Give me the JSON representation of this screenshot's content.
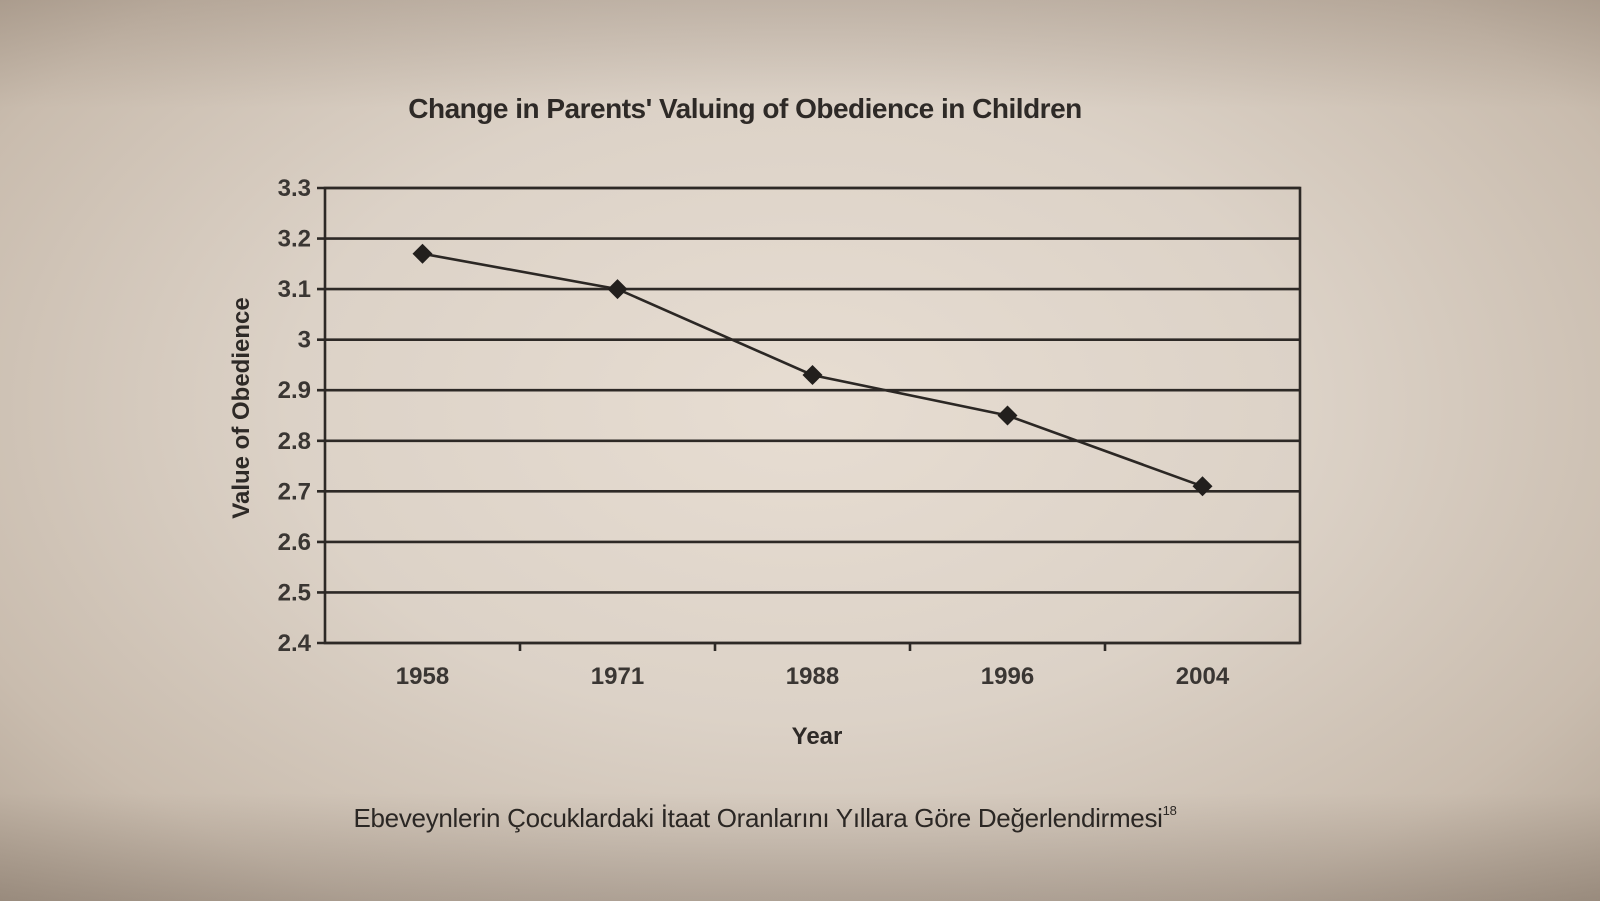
{
  "caption": {
    "text": "Ebeveynlerin Çocuklardaki İtaat Oranlarını Yıllara Göre Değerlendirmesi",
    "superscript": "18"
  },
  "chart_data": {
    "type": "line",
    "title": "Change in Parents' Valuing of Obedience in Children",
    "xlabel": "Year",
    "ylabel": "Value of Obedience",
    "categories": [
      "1958",
      "1971",
      "1988",
      "1996",
      "2004"
    ],
    "values": [
      3.17,
      3.1,
      2.93,
      2.85,
      2.71
    ],
    "ylim": [
      2.4,
      3.3
    ],
    "yticks": [
      "2.4",
      "2.5",
      "2.6",
      "2.7",
      "2.8",
      "2.9",
      "3",
      "3.1",
      "3.2",
      "3.3"
    ],
    "grid": true,
    "legend": "none",
    "marker": "diamond",
    "line_color": "#2b2724"
  }
}
